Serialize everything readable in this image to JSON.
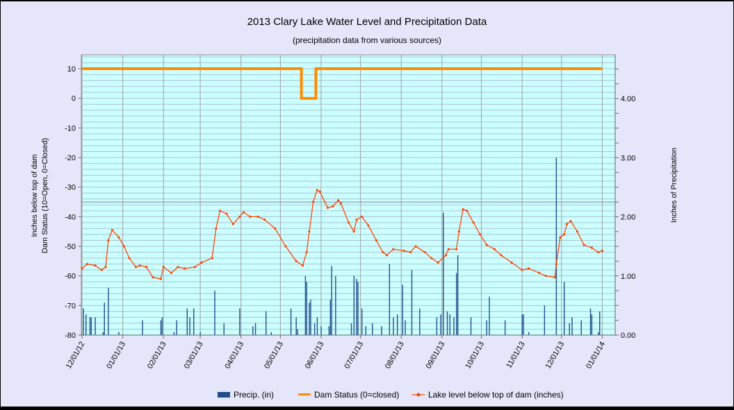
{
  "chart_data": {
    "type": "bar+line",
    "title": "2013 Clary Lake Water Level and Precipitation Data",
    "subtitle": "(precipitation data from various sources)",
    "ylabel_left": [
      "Inches below top of dam",
      "Dam Status (10=Open, 0=Closed)"
    ],
    "ylabel_right": "Inches of Precipitation",
    "x_start_date": "12/01/12",
    "x_unit": "days since 12/01/12",
    "xlim": [
      0,
      402
    ],
    "x_ticks": [
      {
        "label": "12/01/12",
        "day": 0
      },
      {
        "label": "01/01/13",
        "day": 31
      },
      {
        "label": "02/01/13",
        "day": 62
      },
      {
        "label": "03/01/13",
        "day": 90
      },
      {
        "label": "04/01/13",
        "day": 121
      },
      {
        "label": "05/01/13",
        "day": 151
      },
      {
        "label": "06/01/13",
        "day": 182
      },
      {
        "label": "07/01/13",
        "day": 212
      },
      {
        "label": "08/01/13",
        "day": 243
      },
      {
        "label": "09/01/13",
        "day": 274
      },
      {
        "label": "10/01/13",
        "day": 304
      },
      {
        "label": "11/01/13",
        "day": 335
      },
      {
        "label": "12/01/13",
        "day": 365
      },
      {
        "label": "01/01/14",
        "day": 396
      }
    ],
    "ylim_left": [
      -80,
      14.7
    ],
    "y_ticks_left": [
      "10",
      "0",
      "-10",
      "-20",
      "-30",
      "-40",
      "-50",
      "-60",
      "-70",
      "-80"
    ],
    "ylim_right": [
      0,
      4.74
    ],
    "y_ticks_right": [
      "0.00",
      "1.00",
      "2.00",
      "3.00",
      "4.00"
    ],
    "legend": [
      "Precip. (in)",
      "Dam Status (0=closed)",
      "Lake level below top of dam (inches)"
    ],
    "legend_position": "bottom",
    "colors": {
      "precip": "#1F4E8C",
      "dam": "#FF8C00",
      "lake": "#FF4500",
      "plot_bg": "#CCFFFF",
      "grid": "#A9B9C9",
      "vgrid": "#A0A0A0"
    },
    "series": [
      {
        "name": "Dam Status (0=closed)",
        "type": "step",
        "points": [
          [
            0,
            10
          ],
          [
            167,
            10
          ],
          [
            167,
            0
          ],
          [
            178,
            0
          ],
          [
            178,
            10
          ],
          [
            396,
            10
          ]
        ]
      },
      {
        "name": "Lake level below top of dam (inches)",
        "type": "line",
        "points": [
          [
            0,
            -57.5
          ],
          [
            4,
            -56
          ],
          [
            10,
            -56.5
          ],
          [
            15,
            -58
          ],
          [
            18,
            -57
          ],
          [
            20,
            -48
          ],
          [
            23,
            -44.5
          ],
          [
            28,
            -47
          ],
          [
            32,
            -50
          ],
          [
            36,
            -54
          ],
          [
            41,
            -57
          ],
          [
            44,
            -56.5
          ],
          [
            49,
            -57
          ],
          [
            54,
            -60.5
          ],
          [
            60,
            -61
          ],
          [
            62,
            -57
          ],
          [
            68,
            -59
          ],
          [
            73,
            -57
          ],
          [
            78,
            -57.5
          ],
          [
            86,
            -57
          ],
          [
            91,
            -55.5
          ],
          [
            99,
            -54
          ],
          [
            102,
            -44
          ],
          [
            105,
            -38
          ],
          [
            110,
            -39
          ],
          [
            115,
            -42.5
          ],
          [
            120,
            -40
          ],
          [
            123,
            -38.5
          ],
          [
            128,
            -40
          ],
          [
            134,
            -40
          ],
          [
            139,
            -41
          ],
          [
            147,
            -44
          ],
          [
            155,
            -50
          ],
          [
            163,
            -55
          ],
          [
            168,
            -56.5
          ],
          [
            171,
            -52
          ],
          [
            173,
            -45
          ],
          [
            176,
            -35
          ],
          [
            179,
            -31
          ],
          [
            181,
            -31.5
          ],
          [
            187,
            -37
          ],
          [
            191,
            -36.5
          ],
          [
            195,
            -34.5
          ],
          [
            197,
            -35.5
          ],
          [
            203,
            -42
          ],
          [
            207,
            -45
          ],
          [
            209,
            -41
          ],
          [
            213,
            -40
          ],
          [
            218,
            -43
          ],
          [
            224,
            -48
          ],
          [
            229,
            -52
          ],
          [
            232,
            -53
          ],
          [
            237,
            -51
          ],
          [
            245,
            -51.5
          ],
          [
            250,
            -52
          ],
          [
            254,
            -50
          ],
          [
            261,
            -52
          ],
          [
            266,
            -54
          ],
          [
            271,
            -55.5
          ],
          [
            277,
            -53
          ],
          [
            279,
            -51
          ],
          [
            285,
            -51
          ],
          [
            287,
            -45
          ],
          [
            290,
            -37.5
          ],
          [
            293,
            -38
          ],
          [
            298,
            -42
          ],
          [
            303,
            -46
          ],
          [
            308,
            -49.5
          ],
          [
            314,
            -51
          ],
          [
            319,
            -53
          ],
          [
            327,
            -55.5
          ],
          [
            335,
            -58
          ],
          [
            340,
            -57.5
          ],
          [
            348,
            -59
          ],
          [
            353,
            -60
          ],
          [
            360,
            -60.5
          ],
          [
            361,
            -56
          ],
          [
            364,
            -47
          ],
          [
            367,
            -46
          ],
          [
            369,
            -42.5
          ],
          [
            372,
            -41.5
          ],
          [
            377,
            -45
          ],
          [
            382,
            -49.5
          ],
          [
            388,
            -50.5
          ],
          [
            393,
            -52
          ],
          [
            396,
            -51.5
          ]
        ]
      },
      {
        "name": "Precip. (in)",
        "type": "bar",
        "points": [
          [
            1,
            0.45
          ],
          [
            3,
            0.35
          ],
          [
            6,
            0.3
          ],
          [
            7,
            0.3
          ],
          [
            10,
            0.3
          ],
          [
            16,
            0.05
          ],
          [
            17,
            0.55
          ],
          [
            20,
            0.8
          ],
          [
            28,
            0.05
          ],
          [
            46,
            0.25
          ],
          [
            60,
            0.25
          ],
          [
            61,
            0.3
          ],
          [
            70,
            0.05
          ],
          [
            72,
            0.25
          ],
          [
            80,
            0.45
          ],
          [
            82,
            0.3
          ],
          [
            85,
            0.45
          ],
          [
            90,
            0.05
          ],
          [
            101,
            0.75
          ],
          [
            108,
            0.2
          ],
          [
            120,
            0.45
          ],
          [
            130,
            0.15
          ],
          [
            132,
            0.2
          ],
          [
            140,
            0.4
          ],
          [
            144,
            0.05
          ],
          [
            159,
            0.45
          ],
          [
            163,
            0.3
          ],
          [
            164,
            0.1
          ],
          [
            170,
            1.0
          ],
          [
            171,
            0.9
          ],
          [
            173,
            0.55
          ],
          [
            174,
            0.6
          ],
          [
            177,
            0.2
          ],
          [
            179,
            0.3
          ],
          [
            182,
            0.15
          ],
          [
            188,
            0.15
          ],
          [
            189,
            0.6
          ],
          [
            190,
            1.17
          ],
          [
            193,
            1.0
          ],
          [
            205,
            0.2
          ],
          [
            207,
            1.0
          ],
          [
            209,
            0.95
          ],
          [
            210,
            0.9
          ],
          [
            213,
            0.45
          ],
          [
            216,
            0.15
          ],
          [
            221,
            0.2
          ],
          [
            228,
            0.15
          ],
          [
            234,
            1.2
          ],
          [
            237,
            0.3
          ],
          [
            240,
            0.35
          ],
          [
            244,
            0.85
          ],
          [
            246,
            0.25
          ],
          [
            251,
            1.1
          ],
          [
            257,
            0.45
          ],
          [
            270,
            0.3
          ],
          [
            273,
            0.35
          ],
          [
            275,
            2.07
          ],
          [
            278,
            0.4
          ],
          [
            280,
            0.35
          ],
          [
            283,
            0.3
          ],
          [
            285,
            1.05
          ],
          [
            286,
            1.35
          ],
          [
            296,
            0.3
          ],
          [
            308,
            0.25
          ],
          [
            310,
            0.65
          ],
          [
            322,
            0.25
          ],
          [
            335,
            0.35
          ],
          [
            336,
            0.35
          ],
          [
            340,
            0.05
          ],
          [
            352,
            0.5
          ],
          [
            361,
            3.0
          ],
          [
            367,
            0.9
          ],
          [
            371,
            0.2
          ],
          [
            373,
            0.3
          ],
          [
            380,
            0.25
          ],
          [
            387,
            0.45
          ],
          [
            388,
            0.35
          ],
          [
            393,
            0.05
          ],
          [
            394,
            0.4
          ]
        ]
      }
    ]
  }
}
